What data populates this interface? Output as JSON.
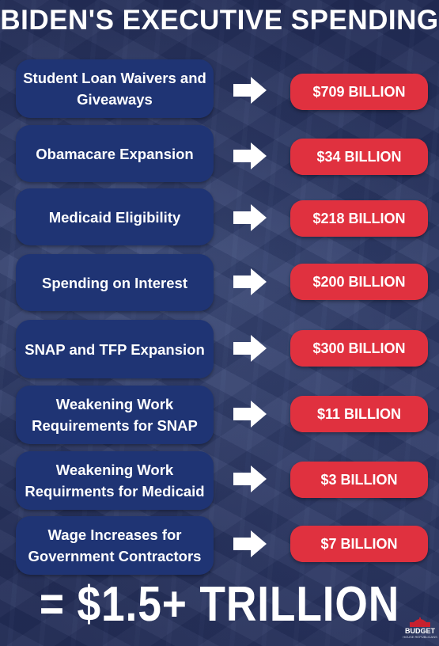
{
  "title": "BIDEN'S EXECUTIVE SPENDING",
  "items": [
    {
      "label": "Student Loan Waivers and Giveaways",
      "amount": "$709 BILLION"
    },
    {
      "label": "Obamacare Expansion",
      "amount": "$34 BILLION"
    },
    {
      "label": "Medicaid Eligibility",
      "amount": "$218 BILLION"
    },
    {
      "label": "Spending on Interest",
      "amount": "$200 BILLION"
    },
    {
      "label": "SNAP and TFP Expansion",
      "amount": "$300 BILLION"
    },
    {
      "label": "Weakening Work Requirements for SNAP",
      "amount": "$11 BILLION"
    },
    {
      "label": "Weakening Work Requirments for Medicaid",
      "amount": "$3 BILLION"
    },
    {
      "label": "Wage Increases for Government Contractors",
      "amount": "$7 BILLION"
    }
  ],
  "total": "= $1.5+ TRILLION",
  "logo": {
    "word": "BUDGET",
    "sub": "HOUSE REPUBLICANS"
  },
  "colors": {
    "label_box": "#1f3474",
    "amount_box": "#e0313f",
    "text": "#ffffff"
  }
}
